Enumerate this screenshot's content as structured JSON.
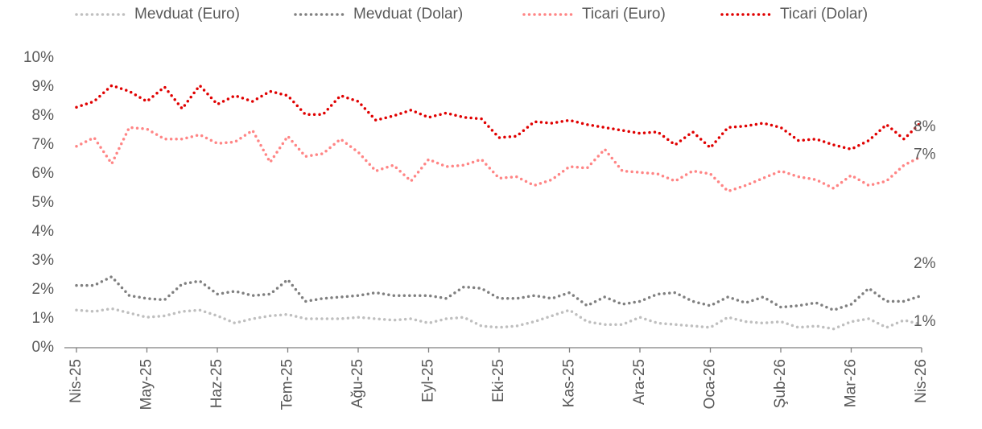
{
  "chart_data": {
    "type": "line",
    "categories": [
      "Nis-25",
      null,
      null,
      null,
      "May-25",
      null,
      null,
      null,
      "Haz-25",
      null,
      null,
      null,
      "Tem-25",
      null,
      null,
      null,
      "Ağu-25",
      null,
      null,
      null,
      "Eyl-25",
      null,
      null,
      null,
      "Eki-25",
      null,
      null,
      null,
      "Kas-25",
      null,
      null,
      null,
      "Ara-25",
      null,
      null,
      null,
      "Oca-26",
      null,
      null,
      null,
      "Şub-26",
      null,
      null,
      null,
      "Mar-26",
      null,
      null,
      null,
      "Nis-26"
    ],
    "series": [
      {
        "name": "Mevduat (Euro)",
        "color": "#bfbfbf",
        "values": [
          1.3,
          1.25,
          1.35,
          1.2,
          1.05,
          1.1,
          1.25,
          1.3,
          1.1,
          0.85,
          1.0,
          1.1,
          1.15,
          1.0,
          1.0,
          1.0,
          1.05,
          1.0,
          0.95,
          1.0,
          0.85,
          1.0,
          1.05,
          0.75,
          0.7,
          0.75,
          0.9,
          1.1,
          1.3,
          0.9,
          0.8,
          0.8,
          1.05,
          0.85,
          0.8,
          0.75,
          0.7,
          1.05,
          0.9,
          0.85,
          0.9,
          0.7,
          0.75,
          0.65,
          0.9,
          1.0,
          0.7,
          0.95,
          0.8
        ],
        "value_labels": [
          null,
          null,
          null,
          null,
          null,
          null,
          null,
          null,
          null,
          null,
          null,
          null,
          null,
          null,
          null,
          null,
          null,
          null,
          null,
          null,
          null,
          null,
          null,
          null,
          null,
          null,
          null,
          null,
          null,
          null,
          null,
          null,
          null,
          null,
          null,
          null,
          null,
          null,
          null,
          null,
          null,
          null,
          null,
          null,
          null,
          null,
          null,
          null,
          "1%"
        ]
      },
      {
        "name": "Mevduat (Dolar)",
        "color": "#7f7f7f",
        "values": [
          2.15,
          2.15,
          2.45,
          1.8,
          1.7,
          1.65,
          2.2,
          2.3,
          1.85,
          1.95,
          1.8,
          1.85,
          2.35,
          1.6,
          1.7,
          1.75,
          1.8,
          1.9,
          1.8,
          1.8,
          1.8,
          1.7,
          2.1,
          2.05,
          1.7,
          1.7,
          1.8,
          1.7,
          1.9,
          1.45,
          1.75,
          1.5,
          1.6,
          1.85,
          1.9,
          1.6,
          1.45,
          1.75,
          1.55,
          1.75,
          1.4,
          1.45,
          1.55,
          1.3,
          1.5,
          2.05,
          1.6,
          1.6,
          1.8
        ],
        "value_labels": [
          null,
          null,
          null,
          null,
          null,
          null,
          null,
          null,
          null,
          null,
          null,
          null,
          null,
          null,
          null,
          null,
          null,
          null,
          null,
          null,
          null,
          null,
          null,
          null,
          null,
          null,
          null,
          null,
          null,
          null,
          null,
          null,
          null,
          null,
          null,
          null,
          null,
          null,
          null,
          null,
          null,
          null,
          null,
          null,
          null,
          null,
          null,
          null,
          "2%"
        ]
      },
      {
        "name": "Ticari (Euro)",
        "color": "#ff8585",
        "values": [
          6.95,
          7.25,
          6.35,
          7.6,
          7.55,
          7.2,
          7.2,
          7.35,
          7.05,
          7.1,
          7.5,
          6.4,
          7.3,
          6.6,
          6.7,
          7.2,
          6.75,
          6.1,
          6.3,
          5.75,
          6.5,
          6.25,
          6.3,
          6.5,
          5.85,
          5.9,
          5.6,
          5.8,
          6.25,
          6.2,
          6.85,
          6.1,
          6.05,
          6.0,
          5.75,
          6.1,
          6.0,
          5.4,
          5.6,
          5.85,
          6.1,
          5.9,
          5.8,
          5.5,
          5.95,
          5.6,
          5.75,
          6.3,
          6.6
        ],
        "value_labels": [
          null,
          null,
          null,
          null,
          null,
          null,
          null,
          null,
          null,
          null,
          null,
          null,
          null,
          null,
          null,
          null,
          null,
          null,
          null,
          null,
          null,
          null,
          null,
          null,
          null,
          null,
          null,
          null,
          null,
          null,
          null,
          null,
          null,
          null,
          null,
          null,
          null,
          null,
          null,
          null,
          null,
          null,
          null,
          null,
          null,
          null,
          null,
          null,
          "7%"
        ]
      },
      {
        "name": "Ticari (Dolar)",
        "color": "#e00000",
        "values": [
          8.3,
          8.5,
          9.05,
          8.85,
          8.5,
          9.0,
          8.25,
          9.05,
          8.4,
          8.7,
          8.5,
          8.85,
          8.7,
          8.05,
          8.05,
          8.7,
          8.5,
          7.85,
          8.0,
          8.2,
          7.95,
          8.1,
          7.95,
          7.9,
          7.25,
          7.3,
          7.8,
          7.75,
          7.85,
          7.7,
          7.6,
          7.5,
          7.4,
          7.45,
          7.0,
          7.45,
          6.9,
          7.6,
          7.65,
          7.75,
          7.6,
          7.15,
          7.2,
          7.0,
          6.85,
          7.15,
          7.7,
          7.2,
          7.8
        ],
        "value_labels": [
          null,
          null,
          null,
          null,
          null,
          null,
          null,
          null,
          null,
          null,
          null,
          null,
          null,
          null,
          null,
          null,
          null,
          null,
          null,
          null,
          null,
          null,
          null,
          null,
          null,
          null,
          null,
          null,
          null,
          null,
          null,
          null,
          null,
          null,
          null,
          null,
          null,
          null,
          null,
          null,
          null,
          null,
          null,
          null,
          null,
          null,
          null,
          null,
          "8%"
        ]
      }
    ],
    "ylim": [
      0,
      10
    ],
    "yticks": [
      {
        "value": 0,
        "label": "0%"
      },
      {
        "value": 1,
        "label": "1%"
      },
      {
        "value": 2,
        "label": "2%"
      },
      {
        "value": 3,
        "label": "3%"
      },
      {
        "value": 4,
        "label": "4%"
      },
      {
        "value": 5,
        "label": "5%"
      },
      {
        "value": 6,
        "label": "6%"
      },
      {
        "value": 7,
        "label": "7%"
      },
      {
        "value": 8,
        "label": "8%"
      },
      {
        "value": 9,
        "label": "9%"
      },
      {
        "value": 10,
        "label": "10%"
      }
    ],
    "grid": false,
    "legend": "top"
  }
}
